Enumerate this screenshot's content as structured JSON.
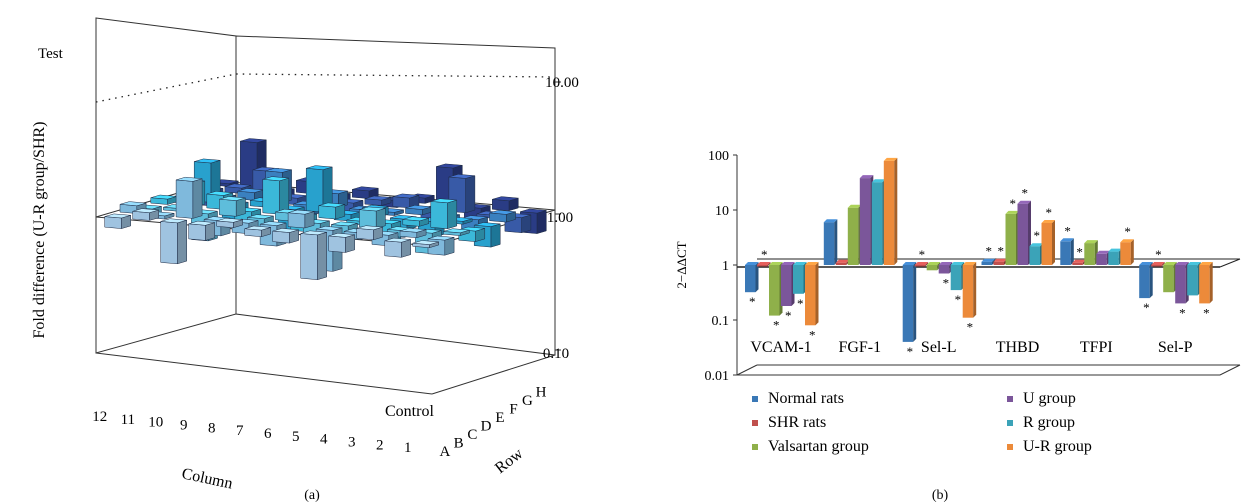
{
  "panel_a": {
    "caption": "(a)",
    "zlabel": "Fold difference (U-R group/SHR)",
    "test_label": "Test",
    "control_label": "Control",
    "column_label": "Column",
    "row_label": "Row",
    "z_ticks": [
      "10.00",
      "1.00",
      "0.10"
    ],
    "columns": [
      "12",
      "11",
      "10",
      "9",
      "8",
      "7",
      "6",
      "5",
      "4",
      "3",
      "2",
      "1"
    ],
    "rows": [
      "A",
      "B",
      "C",
      "D",
      "E",
      "F",
      "G",
      "H"
    ]
  },
  "panel_b": {
    "caption": "(b)",
    "colors": [
      "#3a78b6",
      "#c0504d",
      "#8fb04a",
      "#7b569a",
      "#3ba3b8",
      "#ec8a3a"
    ]
  },
  "chart_data": [
    {
      "type": "bar",
      "subtype": "3d-bar",
      "zlabel": "Fold difference (U-R group/SHR)",
      "zscale": "log",
      "zlim": [
        0.1,
        10
      ],
      "columns": [
        "12",
        "11",
        "10",
        "9",
        "8",
        "7",
        "6",
        "5",
        "4",
        "3",
        "2",
        "1"
      ],
      "rows": [
        "A",
        "B",
        "C",
        "D",
        "E",
        "F",
        "G",
        "H"
      ],
      "values": [
        [
          0.7,
          1.3,
          0.25,
          0.6,
          1.2,
          0.8,
          0.7,
          0.22,
          0.6,
          1.4,
          0.6,
          0.9
        ],
        [
          1.3,
          0.9,
          3.5,
          0.6,
          0.7,
          0.5,
          1.6,
          0.25,
          0.8,
          0.7,
          1.2,
          0.6
        ],
        [
          0.8,
          1.1,
          0.4,
          1.7,
          0.6,
          1.3,
          0.7,
          0.6,
          1.8,
          0.8,
          0.5,
          1.1
        ],
        [
          1.2,
          2.2,
          1.6,
          0.7,
          3.1,
          0.6,
          1.5,
          0.9,
          0.5,
          1.2,
          2.4,
          0.7
        ],
        [
          0.9,
          3.8,
          0.6,
          1.2,
          0.5,
          4.2,
          0.8,
          1.3,
          0.7,
          0.6,
          1.1,
          0.5
        ],
        [
          1.4,
          0.8,
          1.3,
          2.8,
          0.7,
          1.6,
          0.6,
          0.9,
          1.2,
          0.8,
          0.7,
          1.3
        ],
        [
          0.6,
          1.2,
          2.3,
          0.8,
          1.3,
          0.7,
          1.2,
          1.4,
          0.6,
          3.2,
          0.9,
          0.6
        ],
        [
          1.1,
          4.8,
          0.7,
          1.5,
          0.6,
          1.3,
          0.8,
          1.2,
          3.6,
          0.7,
          1.4,
          0.5
        ]
      ]
    },
    {
      "type": "bar",
      "ylabel": "2−ΔΔCT",
      "yscale": "log",
      "ylim": [
        0.01,
        100
      ],
      "y_ticks": [
        "100",
        "10",
        "1",
        "0.1",
        "0.01"
      ],
      "categories": [
        "VCAM-1",
        "FGF-1",
        "Sel-L",
        "THBD",
        "TFPI",
        "Sel-P"
      ],
      "series": [
        {
          "name": "Normal rats",
          "values": [
            0.32,
            6.0,
            0.04,
            1.15,
            2.7,
            0.25
          ]
        },
        {
          "name": "SHR rats",
          "values": [
            1.0,
            1.1,
            1.0,
            1.15,
            1.1,
            1.0
          ]
        },
        {
          "name": "Valsartan group",
          "values": [
            0.12,
            11.0,
            0.8,
            8.5,
            2.5,
            0.32
          ]
        },
        {
          "name": "U group",
          "values": [
            0.18,
            38.0,
            0.7,
            13.0,
            1.6,
            0.2
          ]
        },
        {
          "name": "R group",
          "values": [
            0.3,
            32.0,
            0.35,
            2.2,
            1.75,
            0.28
          ]
        },
        {
          "name": "U-R group",
          "values": [
            0.08,
            78.0,
            0.11,
            5.8,
            2.6,
            0.2
          ]
        }
      ],
      "significance": [
        [
          true,
          false,
          true,
          true,
          true,
          true
        ],
        [
          true,
          false,
          true,
          true,
          true,
          true
        ],
        [
          true,
          false,
          false,
          true,
          false,
          false
        ],
        [
          true,
          false,
          true,
          true,
          false,
          true
        ],
        [
          true,
          false,
          true,
          true,
          false,
          false
        ],
        [
          true,
          false,
          true,
          true,
          true,
          true
        ]
      ],
      "significance_symbol": "*",
      "legend_position": "bottom"
    }
  ]
}
